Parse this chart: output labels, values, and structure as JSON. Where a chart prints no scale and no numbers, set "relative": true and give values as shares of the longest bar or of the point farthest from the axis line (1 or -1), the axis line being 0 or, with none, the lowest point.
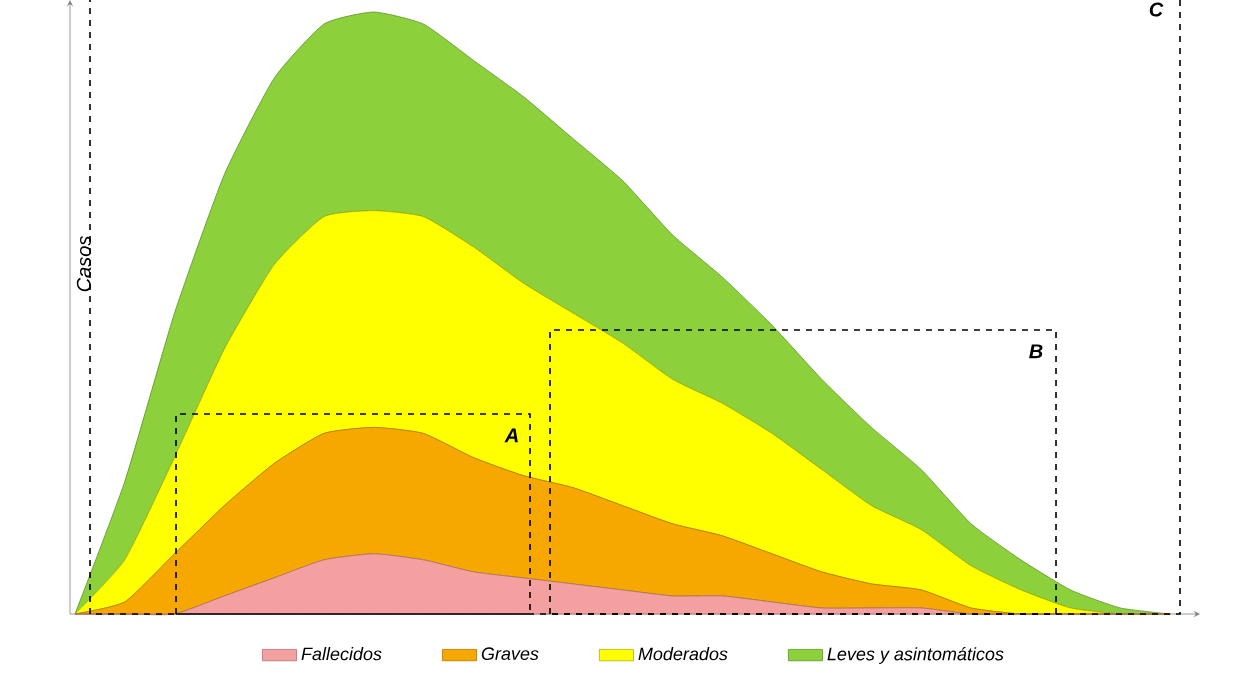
{
  "chart_data": {
    "type": "area",
    "stacked": true,
    "relative": true,
    "ylabel": "Casos",
    "legend": "bottom",
    "categories": [
      null,
      null,
      null,
      null,
      null,
      null,
      null,
      null,
      null,
      null,
      null,
      null,
      null,
      null,
      null,
      null,
      null,
      null,
      null,
      null,
      null,
      null,
      null
    ],
    "series": [
      {
        "name": "Fallecidos",
        "color": "#f4a0a0",
        "values": [
          0,
          0,
          0,
          0.03,
          0.06,
          0.09,
          0.1,
          0.09,
          0.07,
          0.06,
          0.05,
          0.04,
          0.03,
          0.03,
          0.02,
          0.01,
          0.01,
          0.01,
          0,
          0,
          0,
          0,
          0
        ]
      },
      {
        "name": "Graves",
        "color": "#f7a800",
        "values": [
          0,
          0.02,
          0.1,
          0.15,
          0.19,
          0.21,
          0.21,
          0.21,
          0.19,
          0.17,
          0.16,
          0.14,
          0.12,
          0.1,
          0.08,
          0.06,
          0.04,
          0.03,
          0.01,
          0,
          0,
          0,
          0
        ]
      },
      {
        "name": "Moderados",
        "color": "#ffff00",
        "values": [
          0,
          0.07,
          0.16,
          0.26,
          0.33,
          0.36,
          0.36,
          0.36,
          0.35,
          0.32,
          0.29,
          0.27,
          0.24,
          0.22,
          0.2,
          0.17,
          0.13,
          0.1,
          0.07,
          0.04,
          0.01,
          0,
          0
        ]
      },
      {
        "name": "Leves y asintomáticos",
        "color": "#8cd03c",
        "values": [
          0,
          0.13,
          0.24,
          0.29,
          0.31,
          0.32,
          0.33,
          0.32,
          0.31,
          0.31,
          0.29,
          0.27,
          0.24,
          0.21,
          0.18,
          0.15,
          0.13,
          0.1,
          0.07,
          0.05,
          0.03,
          0.01,
          0
        ]
      }
    ],
    "annotations": [
      "A",
      "B",
      "C"
    ]
  }
}
